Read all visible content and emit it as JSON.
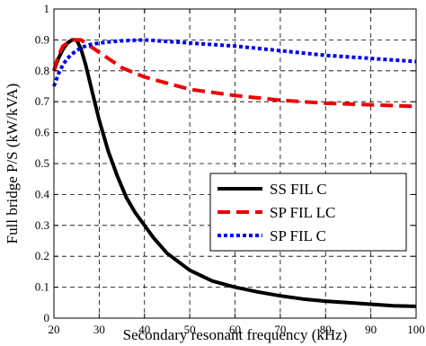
{
  "chart_data": {
    "type": "line",
    "xlabel": "Secondary resonant frequency (kHz)",
    "ylabel": "Full bridge P/S (kW/kVA)",
    "xlim": [
      20,
      100
    ],
    "ylim": [
      0,
      1
    ],
    "xticks": [
      20,
      30,
      40,
      50,
      60,
      70,
      80,
      90,
      100
    ],
    "yticks": [
      0,
      0.1,
      0.2,
      0.3,
      0.4,
      0.5,
      0.6,
      0.7,
      0.8,
      0.9,
      1
    ],
    "ytick_labels": [
      "0",
      "0.1",
      "0.2",
      "0.3",
      "0.4",
      "0.5",
      "0.6",
      "0.7",
      "0.8",
      "0.9",
      "1"
    ],
    "grid": true,
    "legend_position": "center-right",
    "series": [
      {
        "name": "SS FIL C",
        "color": "#000000",
        "style": "solid",
        "x": [
          20,
          21,
          22,
          23,
          24,
          25,
          26,
          27,
          28,
          29,
          30,
          32,
          34,
          36,
          38,
          40,
          42,
          45,
          50,
          55,
          60,
          65,
          70,
          75,
          80,
          85,
          90,
          95,
          100
        ],
        "y": [
          0.8,
          0.84,
          0.87,
          0.89,
          0.9,
          0.9,
          0.87,
          0.82,
          0.76,
          0.7,
          0.64,
          0.54,
          0.46,
          0.39,
          0.34,
          0.3,
          0.26,
          0.21,
          0.155,
          0.12,
          0.1,
          0.085,
          0.072,
          0.062,
          0.055,
          0.05,
          0.045,
          0.04,
          0.038
        ]
      },
      {
        "name": "SP FIL LC",
        "color": "#ee0000",
        "style": "dashed",
        "x": [
          20,
          21,
          22,
          23,
          24,
          25,
          26,
          27,
          28,
          30,
          32,
          35,
          40,
          45,
          50,
          60,
          70,
          80,
          90,
          100
        ],
        "y": [
          0.8,
          0.85,
          0.88,
          0.89,
          0.9,
          0.9,
          0.9,
          0.89,
          0.88,
          0.86,
          0.84,
          0.81,
          0.78,
          0.76,
          0.74,
          0.72,
          0.705,
          0.695,
          0.69,
          0.685
        ]
      },
      {
        "name": "SP FIL C",
        "color": "#0000ee",
        "style": "dotted",
        "x": [
          20,
          21,
          22,
          23,
          24,
          25,
          26,
          28,
          30,
          32,
          35,
          40,
          45,
          50,
          60,
          70,
          80,
          90,
          100
        ],
        "y": [
          0.75,
          0.79,
          0.82,
          0.84,
          0.855,
          0.865,
          0.875,
          0.885,
          0.89,
          0.893,
          0.897,
          0.9,
          0.895,
          0.89,
          0.88,
          0.865,
          0.85,
          0.84,
          0.83
        ]
      }
    ]
  }
}
